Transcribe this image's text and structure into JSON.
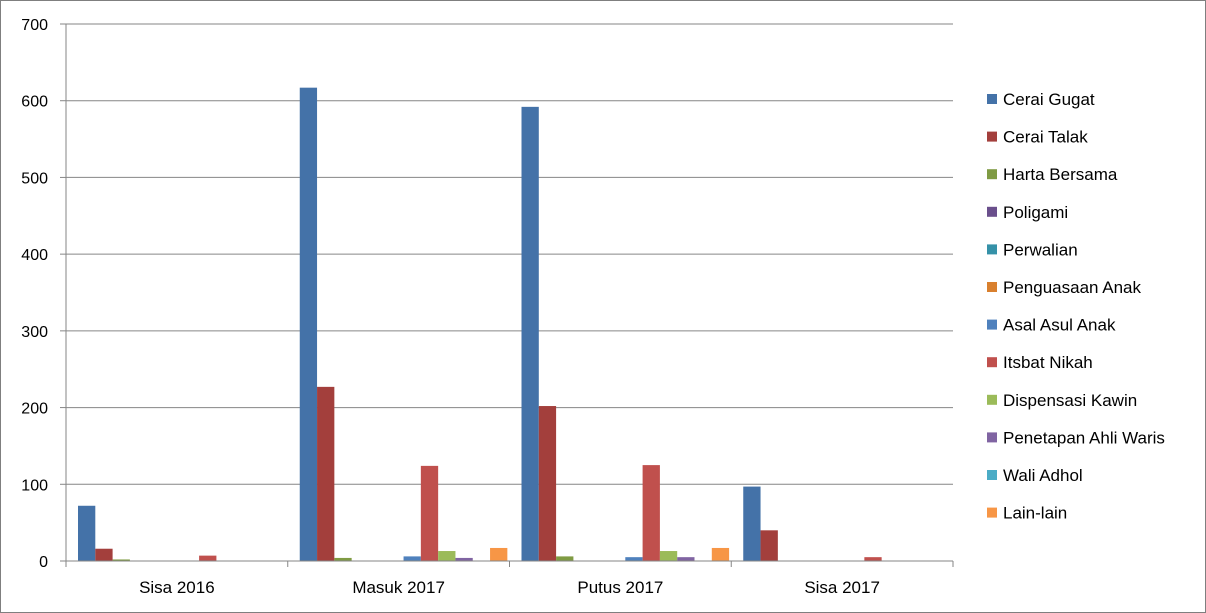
{
  "chart_data": {
    "type": "bar",
    "categories": [
      "Sisa  2016",
      "Masuk 2017",
      "Putus 2017",
      "Sisa 2017"
    ],
    "ylim": [
      0,
      700
    ],
    "yticks": [
      0,
      100,
      200,
      300,
      400,
      500,
      600,
      700
    ],
    "grid": true,
    "legend_position": "right",
    "series": [
      {
        "name": "Cerai Gugat",
        "color": "#4472a8",
        "values": [
          72,
          617,
          592,
          97
        ]
      },
      {
        "name": "Cerai Talak",
        "color": "#a33f3c",
        "values": [
          16,
          227,
          202,
          40
        ]
      },
      {
        "name": "Harta Bersama",
        "color": "#7f9b43",
        "values": [
          2,
          4,
          6,
          0
        ]
      },
      {
        "name": "Poligami",
        "color": "#6a4f8c",
        "values": [
          0,
          0,
          0,
          0
        ]
      },
      {
        "name": "Perwalian",
        "color": "#3591a8",
        "values": [
          0,
          0,
          0,
          0
        ]
      },
      {
        "name": "Penguasaan Anak",
        "color": "#d9802e",
        "values": [
          0,
          0,
          0,
          0
        ]
      },
      {
        "name": "Asal Asul Anak",
        "color": "#4f81bd",
        "values": [
          0,
          6,
          5,
          0
        ]
      },
      {
        "name": "Itsbat Nikah",
        "color": "#c0504d",
        "values": [
          7,
          124,
          125,
          5
        ]
      },
      {
        "name": "Dispensasi Kawin",
        "color": "#9bbb59",
        "values": [
          0,
          13,
          13,
          0
        ]
      },
      {
        "name": "Penetapan Ahli Waris",
        "color": "#8064a2",
        "values": [
          0,
          4,
          5,
          0
        ]
      },
      {
        "name": "Wali Adhol",
        "color": "#4bacc6",
        "values": [
          0,
          0,
          0,
          0
        ]
      },
      {
        "name": "Lain-lain",
        "color": "#f79646",
        "values": [
          0,
          17,
          17,
          0
        ]
      }
    ]
  }
}
